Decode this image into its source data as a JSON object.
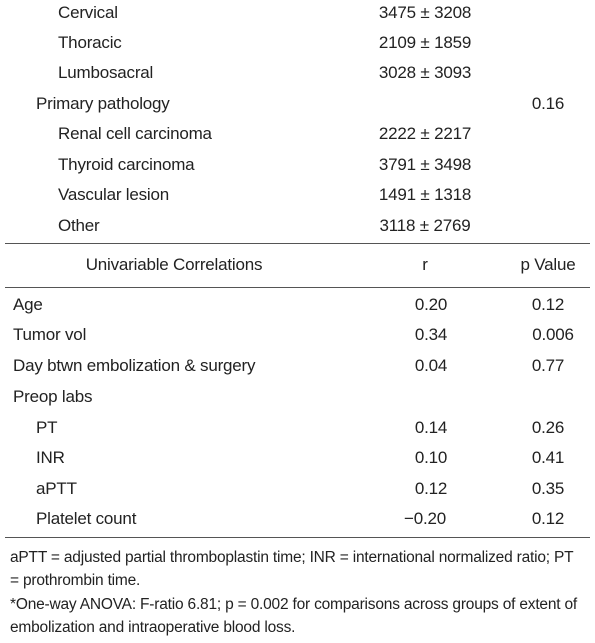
{
  "top_rows": [
    {
      "label": "Cervical",
      "value": "3475 ± 3208"
    },
    {
      "label": "Thoracic",
      "value": "2109 ± 1859"
    },
    {
      "label": "Lumbosacral",
      "value": "3028 ± 3093"
    },
    {
      "label": "Primary pathology",
      "p": "0.16"
    },
    {
      "label": "Renal cell carcinoma",
      "value": "2222 ± 2217"
    },
    {
      "label": "Thyroid carcinoma",
      "value": "3791 ± 3498"
    },
    {
      "label": "Vascular lesion",
      "value": "1491 ± 1318"
    },
    {
      "label": "Other",
      "value": "3118 ± 2769"
    }
  ],
  "correlations": {
    "header": [
      "Univariable Correlations",
      "r",
      "p Value"
    ],
    "rows": [
      [
        "Age",
        "0.20",
        "0.12"
      ],
      [
        "Tumor vol",
        "0.34",
        "0.006"
      ],
      [
        "Day btwn embolization & surgery",
        "0.04",
        "0.77"
      ],
      [
        "Preop labs"
      ],
      [
        "PT",
        "0.14",
        "0.26"
      ],
      [
        "INR",
        "0.10",
        "0.41"
      ],
      [
        "aPTT",
        "0.12",
        "0.35"
      ],
      [
        "Platelet count",
        "−0.20",
        "0.12"
      ]
    ]
  },
  "footnotes": [
    "aPTT = adjusted partial thromboplastin time; INR = international normalized ratio; PT = prothrombin time.",
    "*One-way ANOVA: F-ratio 6.81; p = 0.002 for comparisons across groups of extent of embolization and intraoperative blood loss."
  ]
}
